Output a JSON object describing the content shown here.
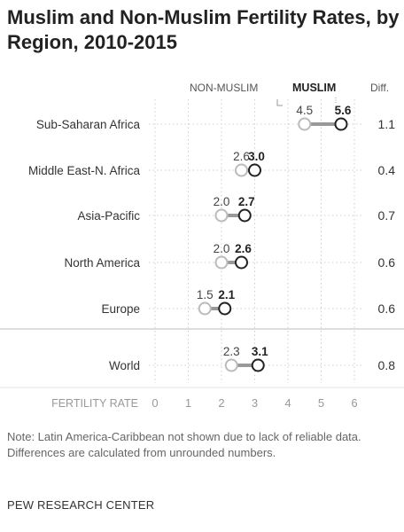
{
  "title": "Muslim and Non-Muslim Fertility Rates, by Region, 2010-2015",
  "legend": {
    "non_muslim": "NON-MUSLIM",
    "muslim": "MUSLIM",
    "diff": "Diff."
  },
  "note": "Note: Latin America-Caribbean not shown due to lack of reliable data. Differences are calculated from unrounded numbers.",
  "source": "PEW RESEARCH CENTER",
  "colors": {
    "muslim_marker": "#222222",
    "non_muslim_marker": "#bbbbbb",
    "connector": "#999999"
  },
  "chart_data": {
    "type": "dot",
    "xlabel": "FERTILITY RATE",
    "xlim": [
      0,
      6
    ],
    "xticks": [
      0,
      1,
      2,
      3,
      4,
      5,
      6
    ],
    "series": [
      {
        "name": "NON-MUSLIM",
        "values": [
          4.5,
          2.6,
          2.0,
          2.0,
          1.5,
          2.3
        ]
      },
      {
        "name": "MUSLIM",
        "values": [
          5.6,
          3.0,
          2.7,
          2.6,
          2.1,
          3.1
        ]
      }
    ],
    "categories": [
      "Sub-Saharan Africa",
      "Middle East-N. Africa",
      "Asia-Pacific",
      "North America",
      "Europe",
      "World"
    ],
    "non_muslim_labels": [
      "4.5",
      "2.6",
      "2.0",
      "2.0",
      "1.5",
      "2.3"
    ],
    "muslim_labels": [
      "5.6",
      "3.0",
      "2.7",
      "2.6",
      "2.1",
      "3.1"
    ],
    "diff": [
      "1.1",
      "0.4",
      "0.7",
      "0.6",
      "0.6",
      "0.8"
    ]
  }
}
